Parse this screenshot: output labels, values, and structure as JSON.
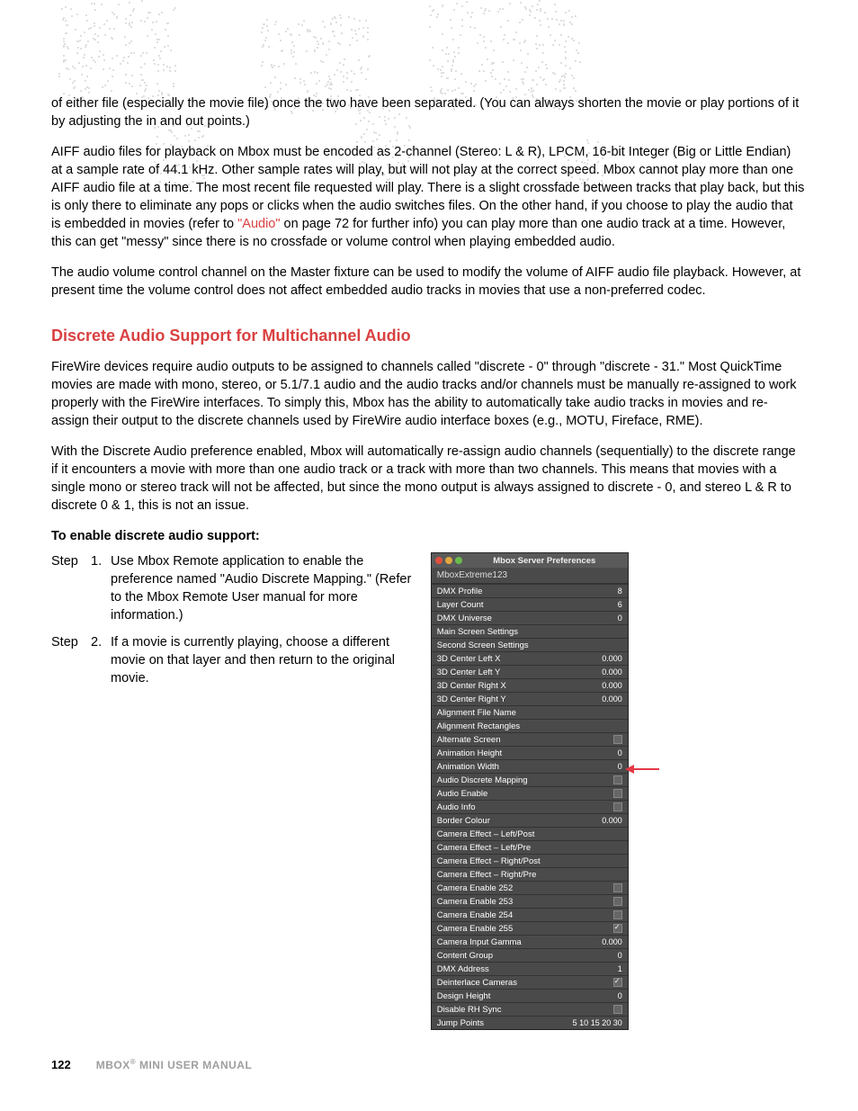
{
  "colors": {
    "accent": "#d94141",
    "text": "#000000",
    "footer_grey": "#9e9e9e",
    "panel_bg": "#4a4a4a",
    "panel_border": "#333333",
    "tl_red": "#e0513e",
    "tl_yellow": "#e0a83e",
    "tl_green": "#6abb4e",
    "arrow": "#e63946"
  },
  "typography": {
    "body_fontsize": 14.5,
    "heading_fontsize": 18,
    "panel_fontsize": 9.5,
    "footer_fontsize": 12
  },
  "para1": "of either file (especially the movie file) once the two have been separated. (You can always shorten the movie or play portions of it by adjusting the in and out points.)",
  "para2a": "AIFF audio files for playback on Mbox must be encoded as 2-channel (Stereo: L & R), LPCM, 16-bit Integer (Big or Little Endian) at a sample rate of 44.1 kHz. Other sample rates will play, but will not play at the correct speed. Mbox cannot play more than one AIFF audio file at a time. The most recent file requested will play. There is a slight crossfade between tracks that play back, but this is only there to eliminate any pops or clicks when the audio switches files. On the other hand, if you choose to play the audio that is embedded in movies (refer to ",
  "para2_link": "\"Audio\"",
  "para2b": " on page 72 for further info) you can play more than one audio track at a time. However, this can get \"messy\" since there is no crossfade or volume control when playing embedded audio.",
  "para3": "The audio volume control channel on the Master fixture can be used to modify the volume of AIFF audio file playback. However, at present time the volume control does not affect embedded audio tracks in movies that use a non-preferred codec.",
  "heading": "Discrete Audio Support for Multichannel Audio",
  "para4": "FireWire devices require audio outputs to be assigned to channels called \"discrete - 0\" through \"discrete - 31.\" Most QuickTime movies are made with mono, stereo, or 5.1/7.1 audio and the audio tracks and/or channels must be manually re-assigned to work properly with the FireWire interfaces. To simply this, Mbox has the ability to automatically take audio tracks in movies and re-assign their output to the discrete channels used by FireWire audio interface boxes (e.g., MOTU, Fireface, RME).",
  "para5": "With the Discrete Audio preference enabled, Mbox will automatically re-assign audio channels (sequentially) to the discrete range if it encounters a movie with more than one audio track or a track with more than two channels. This means that movies with a single mono or stereo track will not be affected, but since the mono output is always assigned to discrete - 0, and stereo L & R to discrete 0 & 1, this is not an issue.",
  "enable_heading": "To enable discrete audio support:",
  "steps": {
    "label": "Step",
    "items": [
      {
        "num": "1.",
        "text": "Use Mbox Remote application to enable the preference named \"Audio Discrete Mapping.\" (Refer to the Mbox Remote User manual for more information.)"
      },
      {
        "num": "2.",
        "text": "If a movie is currently playing, choose a different movie on that layer and then return to the original movie."
      }
    ]
  },
  "prefs": {
    "title": "Mbox Server Preferences",
    "subtitle": "MboxExtreme123",
    "rows": [
      {
        "label": "DMX Profile",
        "value": "8",
        "type": "text"
      },
      {
        "label": "Layer Count",
        "value": "6",
        "type": "text"
      },
      {
        "label": "DMX Universe",
        "value": "0",
        "type": "text"
      },
      {
        "label": "Main Screen Settings",
        "value": "",
        "type": "text"
      },
      {
        "label": "Second Screen Settings",
        "value": "",
        "type": "text"
      },
      {
        "label": "3D Center Left X",
        "value": "0.000",
        "type": "text"
      },
      {
        "label": "3D Center Left Y",
        "value": "0.000",
        "type": "text"
      },
      {
        "label": "3D Center Right X",
        "value": "0.000",
        "type": "text"
      },
      {
        "label": "3D Center Right Y",
        "value": "0.000",
        "type": "text"
      },
      {
        "label": "Alignment File Name",
        "value": "",
        "type": "text"
      },
      {
        "label": "Alignment Rectangles",
        "value": "",
        "type": "text"
      },
      {
        "label": "Alternate Screen",
        "value": "",
        "type": "checkbox",
        "checked": false
      },
      {
        "label": "Animation Height",
        "value": "0",
        "type": "text"
      },
      {
        "label": "Animation Width",
        "value": "0",
        "type": "text"
      },
      {
        "label": "Audio Discrete Mapping",
        "value": "",
        "type": "checkbox",
        "checked": false,
        "highlight": true
      },
      {
        "label": "Audio Enable",
        "value": "",
        "type": "checkbox",
        "checked": false
      },
      {
        "label": "Audio Info",
        "value": "",
        "type": "checkbox",
        "checked": false
      },
      {
        "label": "Border Colour",
        "value": "0.000",
        "type": "text"
      },
      {
        "label": "Camera Effect – Left/Post",
        "value": "",
        "type": "text"
      },
      {
        "label": "Camera Effect – Left/Pre",
        "value": "",
        "type": "text"
      },
      {
        "label": "Camera Effect – Right/Post",
        "value": "",
        "type": "text"
      },
      {
        "label": "Camera Effect – Right/Pre",
        "value": "",
        "type": "text"
      },
      {
        "label": "Camera Enable 252",
        "value": "",
        "type": "checkbox",
        "checked": false
      },
      {
        "label": "Camera Enable 253",
        "value": "",
        "type": "checkbox",
        "checked": false
      },
      {
        "label": "Camera Enable 254",
        "value": "",
        "type": "checkbox",
        "checked": false
      },
      {
        "label": "Camera Enable 255",
        "value": "",
        "type": "checkbox",
        "checked": true
      },
      {
        "label": "Camera Input Gamma",
        "value": "0.000",
        "type": "text"
      },
      {
        "label": "Content Group",
        "value": "0",
        "type": "text"
      },
      {
        "label": "DMX Address",
        "value": "1",
        "type": "text"
      },
      {
        "label": "Deinterlace Cameras",
        "value": "",
        "type": "checkbox",
        "checked": true
      },
      {
        "label": "Design Height",
        "value": "0",
        "type": "text"
      },
      {
        "label": "Disable RH Sync",
        "value": "",
        "type": "checkbox",
        "checked": false
      },
      {
        "label": "Jump Points",
        "value": "5 10 15 20 30",
        "type": "text"
      }
    ]
  },
  "footer": {
    "page": "122",
    "title_a": "MBOX",
    "title_b": " MINI USER MANUAL",
    "reg": "®"
  }
}
